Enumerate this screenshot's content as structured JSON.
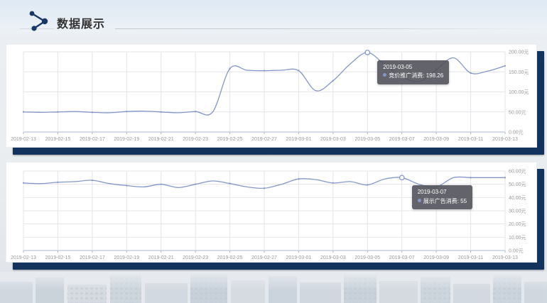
{
  "header": {
    "title": "数据展示",
    "icon": "polyline-nodes-icon"
  },
  "colors": {
    "navy": "#11335c",
    "line": "#8498c8",
    "grid": "#e4e4ea",
    "axis": "#aab7d3",
    "tick_text": "#999999",
    "tooltip_bg": "rgba(77,79,86,0.88)"
  },
  "chart_data": [
    {
      "type": "line",
      "title": "",
      "x": [
        "2019-02-13",
        "2019-02-14",
        "2019-02-15",
        "2019-02-16",
        "2019-02-17",
        "2019-02-18",
        "2019-02-19",
        "2019-02-20",
        "2019-02-21",
        "2019-02-22",
        "2019-02-23",
        "2019-02-24",
        "2019-02-25",
        "2019-02-26",
        "2019-02-27",
        "2019-02-28",
        "2019-03-01",
        "2019-03-02",
        "2019-03-03",
        "2019-03-04",
        "2019-03-05",
        "2019-03-06",
        "2019-03-07",
        "2019-03-08",
        "2019-03-09",
        "2019-03-10",
        "2019-03-11",
        "2019-03-12",
        "2019-03-13"
      ],
      "x_tick_labels": [
        "2019-02-13",
        "2019-02-15",
        "2019-02-17",
        "2019-02-19",
        "2019-02-21",
        "2019-02-23",
        "2019-02-25",
        "2019-02-27",
        "2019-03-01",
        "2019-03-03",
        "2019-03-05",
        "2019-03-07",
        "2019-03-09",
        "2019-03-11",
        "2019-03-13"
      ],
      "series": [
        {
          "name": "竞价推广消费",
          "values": [
            50,
            49,
            50,
            51,
            49,
            48,
            51,
            52,
            50,
            48,
            51,
            50,
            158,
            154,
            153,
            154,
            153,
            103,
            128,
            170,
            198.26,
            168,
            138,
            126,
            155,
            185,
            147,
            152,
            165
          ]
        }
      ],
      "ylim": [
        0,
        200
      ],
      "y_ticks": [
        0,
        50,
        100,
        150,
        200
      ],
      "y_tick_labels": [
        "0.00元",
        "50.00元",
        "100.00元",
        "150.00元",
        "200.00元"
      ],
      "y_axis_position": "right",
      "grid": true,
      "legend": "none",
      "tooltip": {
        "date": "2019-03-05",
        "series": "竞价推广消费",
        "value": "198.26",
        "anchor_index": 20
      }
    },
    {
      "type": "line",
      "title": "",
      "x": [
        "2019-02-13",
        "2019-02-14",
        "2019-02-15",
        "2019-02-16",
        "2019-02-17",
        "2019-02-18",
        "2019-02-19",
        "2019-02-20",
        "2019-02-21",
        "2019-02-22",
        "2019-02-23",
        "2019-02-24",
        "2019-02-25",
        "2019-02-26",
        "2019-02-27",
        "2019-02-28",
        "2019-03-01",
        "2019-03-02",
        "2019-03-03",
        "2019-03-04",
        "2019-03-05",
        "2019-03-06",
        "2019-03-07",
        "2019-03-08",
        "2019-03-09",
        "2019-03-10",
        "2019-03-11",
        "2019-03-12",
        "2019-03-13"
      ],
      "x_tick_labels": [
        "2019-02-13",
        "2019-02-15",
        "2019-02-17",
        "2019-02-19",
        "2019-02-21",
        "2019-02-23",
        "2019-02-25",
        "2019-02-27",
        "2019-03-01",
        "2019-03-03",
        "2019-03-05",
        "2019-03-07",
        "2019-03-09",
        "2019-03-11",
        "2019-03-13"
      ],
      "series": [
        {
          "name": "展示广告消费",
          "values": [
            51,
            50.5,
            51.5,
            52,
            53,
            50.5,
            49,
            48,
            50,
            47.5,
            50,
            52.5,
            50.5,
            48,
            47,
            50,
            54,
            53.5,
            51,
            52,
            49.5,
            54,
            55,
            50,
            48,
            55,
            55,
            55,
            55
          ]
        }
      ],
      "ylim": [
        0,
        60
      ],
      "y_ticks": [
        0,
        10,
        20,
        30,
        40,
        50,
        60
      ],
      "y_tick_labels": [
        "0.00元",
        "10.00元",
        "20.00元",
        "30.00元",
        "40.00元",
        "50.00元",
        "60.00元"
      ],
      "y_axis_position": "right",
      "grid": true,
      "legend": "none",
      "tooltip": {
        "date": "2019-03-07",
        "series": "展示广告消费",
        "value": "55",
        "anchor_index": 22
      }
    }
  ]
}
